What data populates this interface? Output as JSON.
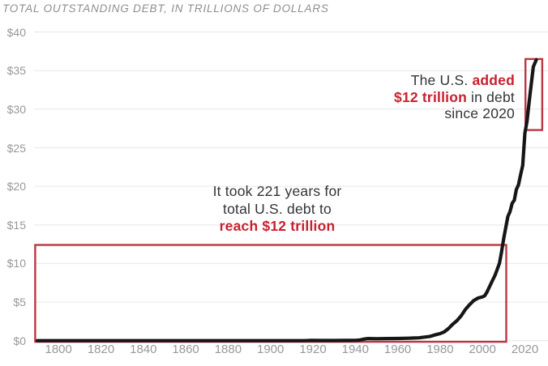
{
  "title": "TOTAL OUTSTANDING DEBT, IN TRILLIONS OF DOLLARS",
  "colors": {
    "background": "#ffffff",
    "title_text": "#8c8e90",
    "tick_text": "#96989a",
    "gridline": "#ededed",
    "debt_line": "#161616",
    "red_text": "#c8202f",
    "red_box": "#bb3742",
    "annotation_text": "#323437"
  },
  "y_axis": {
    "ticks": [
      {
        "label": "$40",
        "value": 40
      },
      {
        "label": "$35",
        "value": 35
      },
      {
        "label": "$30",
        "value": 30
      },
      {
        "label": "$25",
        "value": 25
      },
      {
        "label": "$20",
        "value": 20
      },
      {
        "label": "$15",
        "value": 15
      },
      {
        "label": "$10",
        "value": 10
      },
      {
        "label": "$5",
        "value": 5
      },
      {
        "label": "$0",
        "value": 0
      }
    ]
  },
  "x_axis": {
    "ticks": [
      {
        "label": "1800",
        "value": 1800
      },
      {
        "label": "1820",
        "value": 1820
      },
      {
        "label": "1840",
        "value": 1840
      },
      {
        "label": "1860",
        "value": 1860
      },
      {
        "label": "1880",
        "value": 1880
      },
      {
        "label": "1900",
        "value": 1900
      },
      {
        "label": "1920",
        "value": 1920
      },
      {
        "label": "1940",
        "value": 1940
      },
      {
        "label": "1960",
        "value": 1960
      },
      {
        "label": "1980",
        "value": 1980
      },
      {
        "label": "2000",
        "value": 2000
      },
      {
        "label": "2020",
        "value": 2020
      }
    ]
  },
  "annotations": {
    "took": {
      "line1": "It took 221 years for",
      "line2": "total U.S. debt to",
      "line3_red": "reach $12 trillion"
    },
    "added": {
      "line1_plain": "The U.S. ",
      "line1_red": "added",
      "line2_red": "$12 trillion",
      "line2_plain": " in debt",
      "line3": "since 2020"
    }
  },
  "chart_data": {
    "type": "line",
    "title": "TOTAL OUTSTANDING DEBT, IN TRILLIONS OF DOLLARS",
    "xlabel": "",
    "ylabel": "",
    "xlim": [
      1790,
      2028.5
    ],
    "ylim": [
      0,
      40
    ],
    "grid": "horizontal",
    "legend": "none",
    "series": [
      {
        "name": "Total outstanding U.S. debt ($ trillions)",
        "points": [
          [
            1790,
            0.0
          ],
          [
            1800,
            0.0
          ],
          [
            1810,
            0.0
          ],
          [
            1820,
            0.0
          ],
          [
            1830,
            0.0
          ],
          [
            1840,
            0.0
          ],
          [
            1850,
            0.0
          ],
          [
            1860,
            0.0
          ],
          [
            1866,
            0.003
          ],
          [
            1880,
            0.002
          ],
          [
            1890,
            0.001
          ],
          [
            1900,
            0.001
          ],
          [
            1910,
            0.003
          ],
          [
            1916,
            0.004
          ],
          [
            1919,
            0.027
          ],
          [
            1925,
            0.021
          ],
          [
            1930,
            0.016
          ],
          [
            1935,
            0.029
          ],
          [
            1940,
            0.043
          ],
          [
            1942,
            0.072
          ],
          [
            1944,
            0.201
          ],
          [
            1946,
            0.269
          ],
          [
            1950,
            0.257
          ],
          [
            1955,
            0.274
          ],
          [
            1960,
            0.286
          ],
          [
            1965,
            0.317
          ],
          [
            1970,
            0.371
          ],
          [
            1975,
            0.533
          ],
          [
            1978,
            0.772
          ],
          [
            1980,
            0.908
          ],
          [
            1982,
            1.142
          ],
          [
            1984,
            1.573
          ],
          [
            1986,
            2.125
          ],
          [
            1988,
            2.602
          ],
          [
            1990,
            3.233
          ],
          [
            1992,
            4.065
          ],
          [
            1994,
            4.693
          ],
          [
            1996,
            5.225
          ],
          [
            1998,
            5.526
          ],
          [
            2000,
            5.674
          ],
          [
            2001,
            5.807
          ],
          [
            2002,
            6.228
          ],
          [
            2004,
            7.379
          ],
          [
            2006,
            8.507
          ],
          [
            2008,
            10.025
          ],
          [
            2009,
            11.5
          ],
          [
            2010,
            13.2
          ],
          [
            2012,
            16.1
          ],
          [
            2013,
            16.7
          ],
          [
            2014,
            17.8
          ],
          [
            2015,
            18.2
          ],
          [
            2016,
            19.6
          ],
          [
            2017,
            20.2
          ],
          [
            2018,
            21.5
          ],
          [
            2019,
            22.7
          ],
          [
            2020,
            26.9
          ],
          [
            2021,
            28.4
          ],
          [
            2022,
            30.9
          ],
          [
            2023,
            33.2
          ],
          [
            2024,
            35.5
          ],
          [
            2025.4,
            36.4
          ]
        ]
      }
    ],
    "highlight_boxes": [
      {
        "x0_year": 1789,
        "x1_year": 2011.2,
        "y0_value": -0.15,
        "y1_value": 12.4
      },
      {
        "x0_year": 2020.3,
        "x1_year": 2028.2,
        "y0_value": 27.3,
        "y1_value": 36.5
      }
    ]
  }
}
